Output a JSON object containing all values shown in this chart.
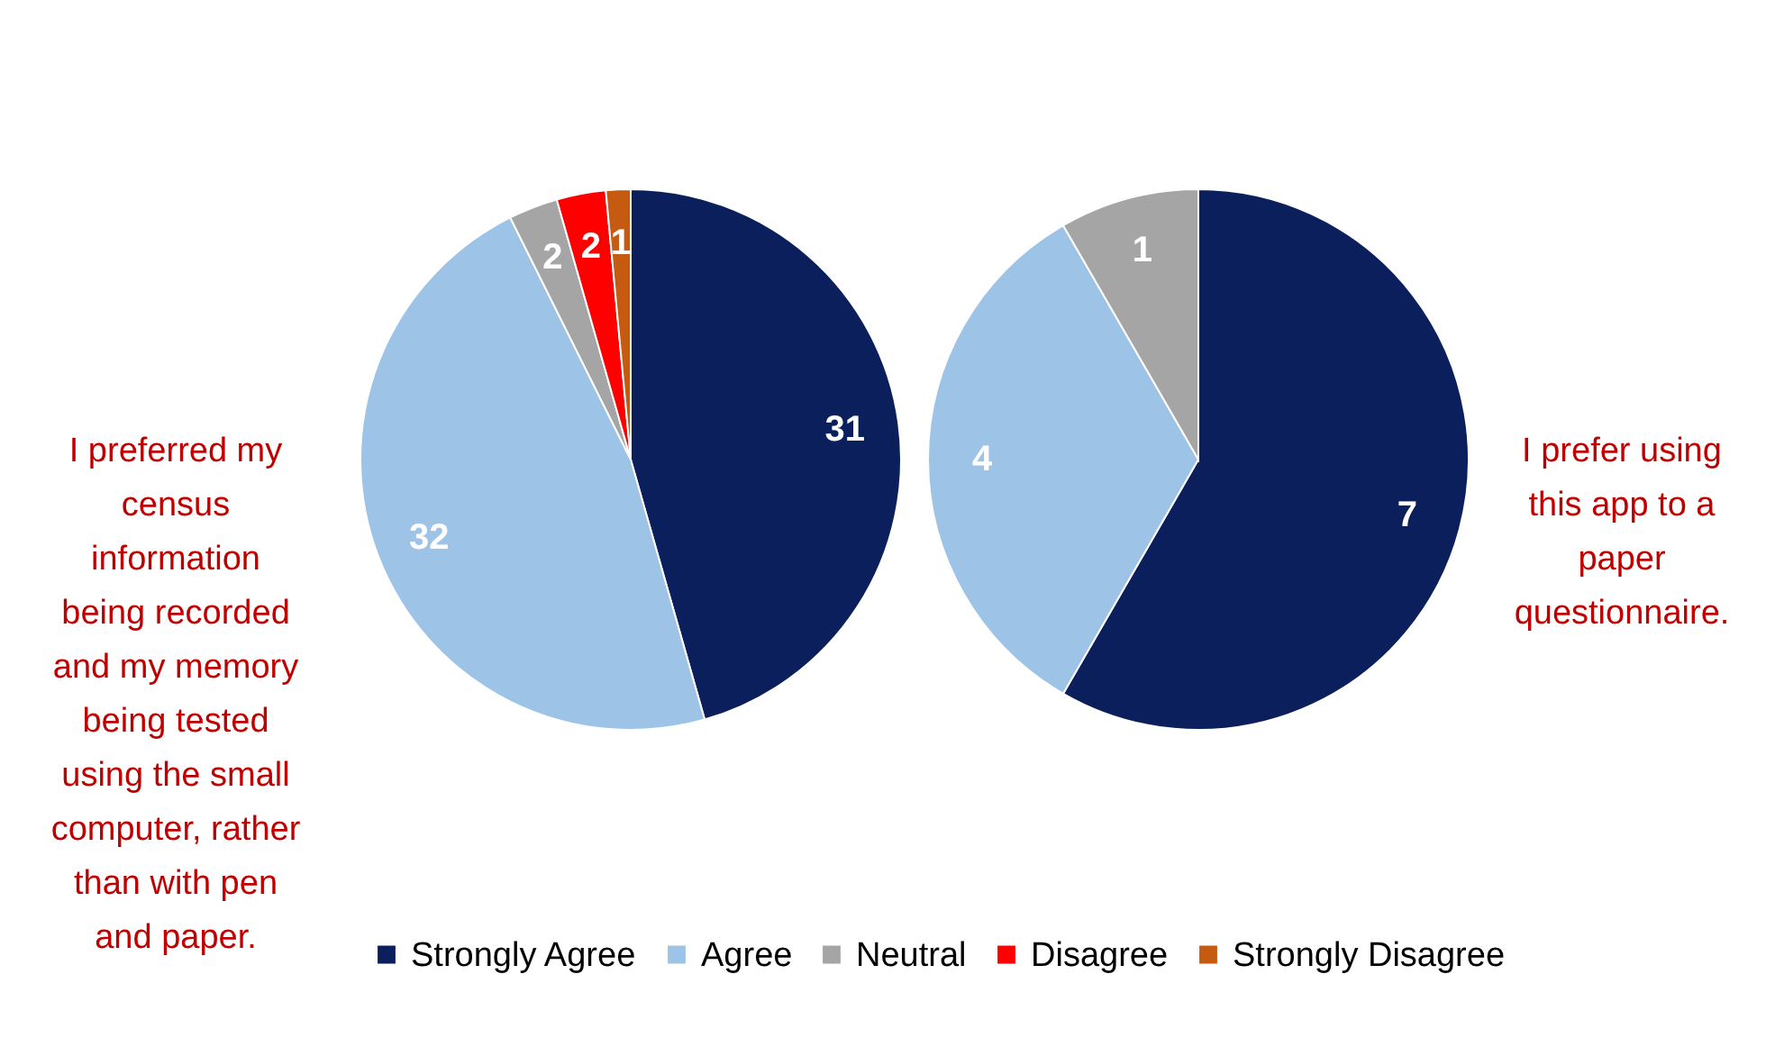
{
  "chart_data": [
    {
      "type": "pie",
      "title": "I preferred my census information being recorded and my memory being tested using the small computer, rather than with pen and paper.",
      "categories": [
        "Strongly Agree",
        "Agree",
        "Neutral",
        "Disagree",
        "Strongly Disagree"
      ],
      "values": [
        31,
        32,
        2,
        2,
        1
      ],
      "colors": [
        "#0a1f5c",
        "#9dc3e6",
        "#a5a5a5",
        "#ff0000",
        "#c55a11"
      ],
      "data_labels": true,
      "legend": "bottom"
    },
    {
      "type": "pie",
      "title": "I prefer using this app to a paper questionnaire.",
      "categories": [
        null,
        null,
        null
      ],
      "values": [
        7,
        4,
        1
      ],
      "colors": [
        "#0a1f5c",
        "#9dc3e6",
        "#a5a5a5"
      ],
      "data_labels": true
    }
  ]
}
